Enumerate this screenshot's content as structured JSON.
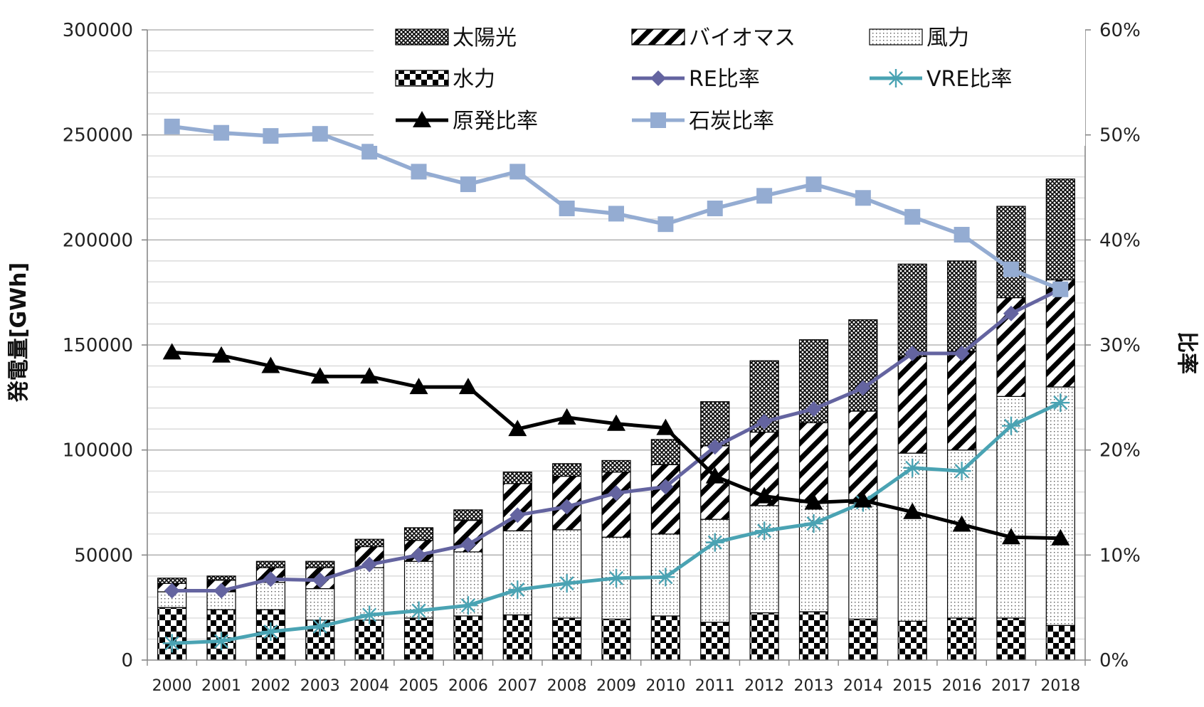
{
  "chart_data": {
    "type": "bar",
    "categories": [
      "2000",
      "2001",
      "2002",
      "2003",
      "2004",
      "2005",
      "2006",
      "2007",
      "2008",
      "2009",
      "2010",
      "2011",
      "2012",
      "2013",
      "2014",
      "2015",
      "2016",
      "2017",
      "2018"
    ],
    "ylabel": "発電量[GWh]",
    "y2label": "比率",
    "ylim": [
      0,
      300000
    ],
    "y2lim": [
      0,
      0.6
    ],
    "yticks": [
      "0",
      "50000",
      "100000",
      "150000",
      "200000",
      "250000",
      "300000"
    ],
    "y2ticks": [
      "0%",
      "10%",
      "20%",
      "30%",
      "40%",
      "50%",
      "60%"
    ],
    "grid": true,
    "legend_position": "top",
    "bar_series": [
      {
        "name": "水力",
        "pattern": "checker",
        "values": [
          25000,
          24000,
          24000,
          19000,
          19000,
          20000,
          21000,
          21500,
          20000,
          19500,
          21000,
          18000,
          22500,
          23000,
          19500,
          18500,
          20000,
          20000,
          16500
        ]
      },
      {
        "name": "風力",
        "pattern": "dots",
        "values": [
          7500,
          8500,
          13000,
          15000,
          25000,
          27000,
          30500,
          40000,
          42000,
          39000,
          39000,
          49000,
          51000,
          52000,
          55000,
          80000,
          80000,
          105500,
          113500
        ]
      },
      {
        "name": "バイオマス",
        "pattern": "diagonal",
        "values": [
          4000,
          5500,
          7000,
          10000,
          10000,
          10000,
          15000,
          22500,
          25500,
          31000,
          33000,
          35000,
          35000,
          38000,
          44000,
          46000,
          47000,
          47000,
          51000
        ]
      },
      {
        "name": "太陽光",
        "pattern": "cross",
        "values": [
          2500,
          2000,
          3000,
          3000,
          3500,
          6000,
          5000,
          5500,
          6000,
          5500,
          12000,
          21000,
          34000,
          39500,
          43500,
          44000,
          43000,
          43500,
          48000
        ]
      }
    ],
    "line_series": [
      {
        "name": "RE比率",
        "color": "#6464a0",
        "marker": "diamond",
        "values": [
          0.066,
          0.066,
          0.077,
          0.076,
          0.091,
          0.1,
          0.11,
          0.138,
          0.146,
          0.159,
          0.165,
          0.203,
          0.227,
          0.239,
          0.259,
          0.292,
          0.292,
          0.33,
          0.353
        ]
      },
      {
        "name": "VRE比率",
        "color": "#4aa3b3",
        "marker": "star",
        "values": [
          0.016,
          0.018,
          0.027,
          0.032,
          0.043,
          0.047,
          0.052,
          0.067,
          0.073,
          0.078,
          0.079,
          0.112,
          0.123,
          0.13,
          0.15,
          0.183,
          0.18,
          0.223,
          0.245
        ]
      },
      {
        "name": "原発比率",
        "color": "#000000",
        "marker": "triangle",
        "values": [
          0.293,
          0.29,
          0.28,
          0.27,
          0.27,
          0.26,
          0.26,
          0.22,
          0.231,
          0.225,
          0.221,
          0.175,
          0.156,
          0.15,
          0.152,
          0.141,
          0.129,
          0.117,
          0.116
        ]
      },
      {
        "name": "石炭比率",
        "color": "#94acd2",
        "marker": "square",
        "values": [
          0.508,
          0.502,
          0.499,
          0.501,
          0.484,
          0.465,
          0.453,
          0.465,
          0.43,
          0.425,
          0.415,
          0.43,
          0.442,
          0.453,
          0.44,
          0.422,
          0.405,
          0.372,
          0.353
        ]
      }
    ],
    "legend_order": [
      "太陽光",
      "バイオマス",
      "風力",
      "水力",
      "RE比率",
      "VRE比率",
      "原発比率",
      "石炭比率"
    ]
  }
}
